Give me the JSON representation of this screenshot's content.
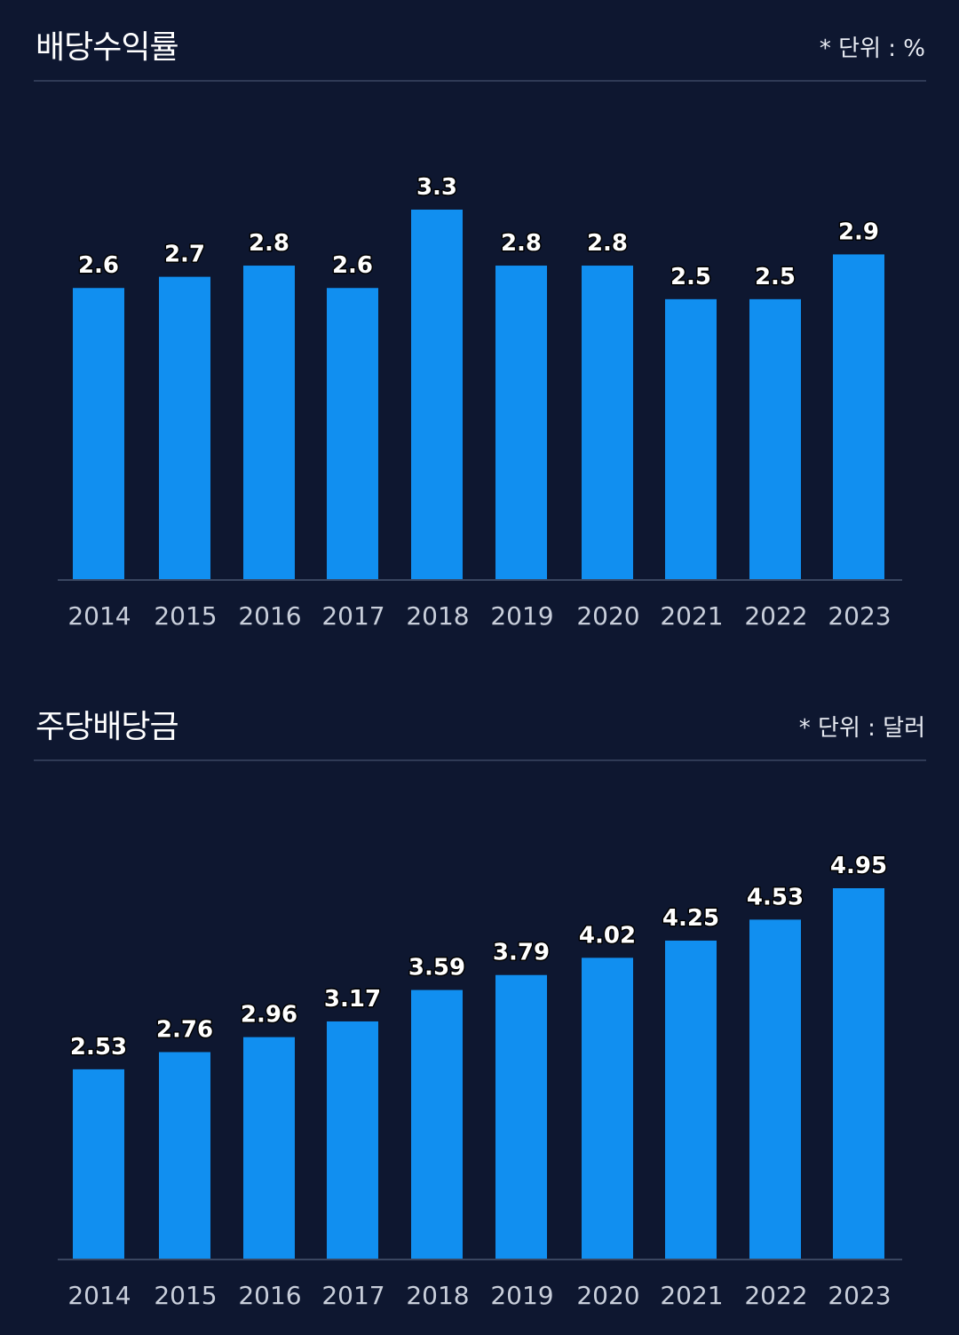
{
  "colors": {
    "background": "#0e1730",
    "bar": "#118ff0",
    "divider": "#2f3a55"
  },
  "chart_data": [
    {
      "type": "bar",
      "title": "배당수익률",
      "unit_note": "* 단위 : %",
      "categories": [
        "2014",
        "2015",
        "2016",
        "2017",
        "2018",
        "2019",
        "2020",
        "2021",
        "2022",
        "2023"
      ],
      "values": [
        2.6,
        2.7,
        2.8,
        2.6,
        3.3,
        2.8,
        2.8,
        2.5,
        2.5,
        2.9
      ],
      "data_labels": [
        "2.6",
        "2.7",
        "2.8",
        "2.6",
        "3.3",
        "2.8",
        "2.8",
        "2.5",
        "2.5",
        "2.9"
      ],
      "ylim": [
        0,
        3.3
      ],
      "grid": false,
      "legend": "none"
    },
    {
      "type": "bar",
      "title": "주당배당금",
      "unit_note": "* 단위 : 달러",
      "categories": [
        "2014",
        "2015",
        "2016",
        "2017",
        "2018",
        "2019",
        "2020",
        "2021",
        "2022",
        "2023"
      ],
      "values": [
        2.53,
        2.76,
        2.96,
        3.17,
        3.59,
        3.79,
        4.02,
        4.25,
        4.53,
        4.95
      ],
      "data_labels": [
        "2.53",
        "2.76",
        "2.96",
        "3.17",
        "3.59",
        "3.79",
        "4.02",
        "4.25",
        "4.53",
        "4.95"
      ],
      "ylim": [
        0,
        4.95
      ],
      "grid": false,
      "legend": "none"
    }
  ]
}
